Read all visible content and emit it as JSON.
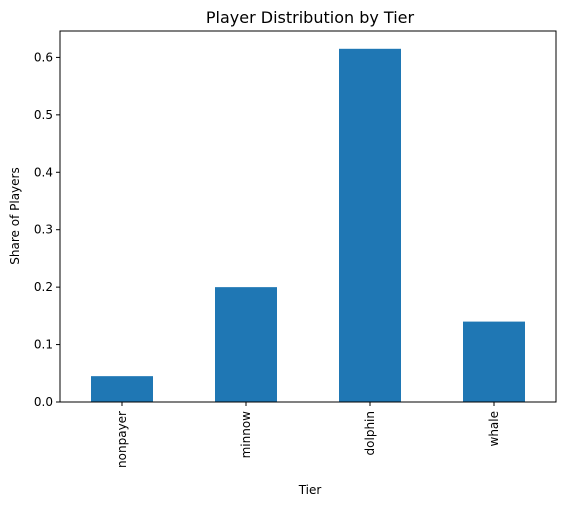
{
  "chart_data": {
    "type": "bar",
    "title": "Player Distribution by Tier",
    "xlabel": "Tier",
    "ylabel": "Share of Players",
    "categories": [
      "nonpayer",
      "minnow",
      "dolphin",
      "whale"
    ],
    "values": [
      0.045,
      0.2,
      0.615,
      0.14
    ],
    "yticks": [
      "0.0",
      "0.1",
      "0.2",
      "0.3",
      "0.4",
      "0.5",
      "0.6"
    ],
    "ylim": [
      0,
      0.646
    ],
    "grid": false,
    "bar_color": "#1f77b4",
    "tick_label_rotation": "vertical"
  }
}
